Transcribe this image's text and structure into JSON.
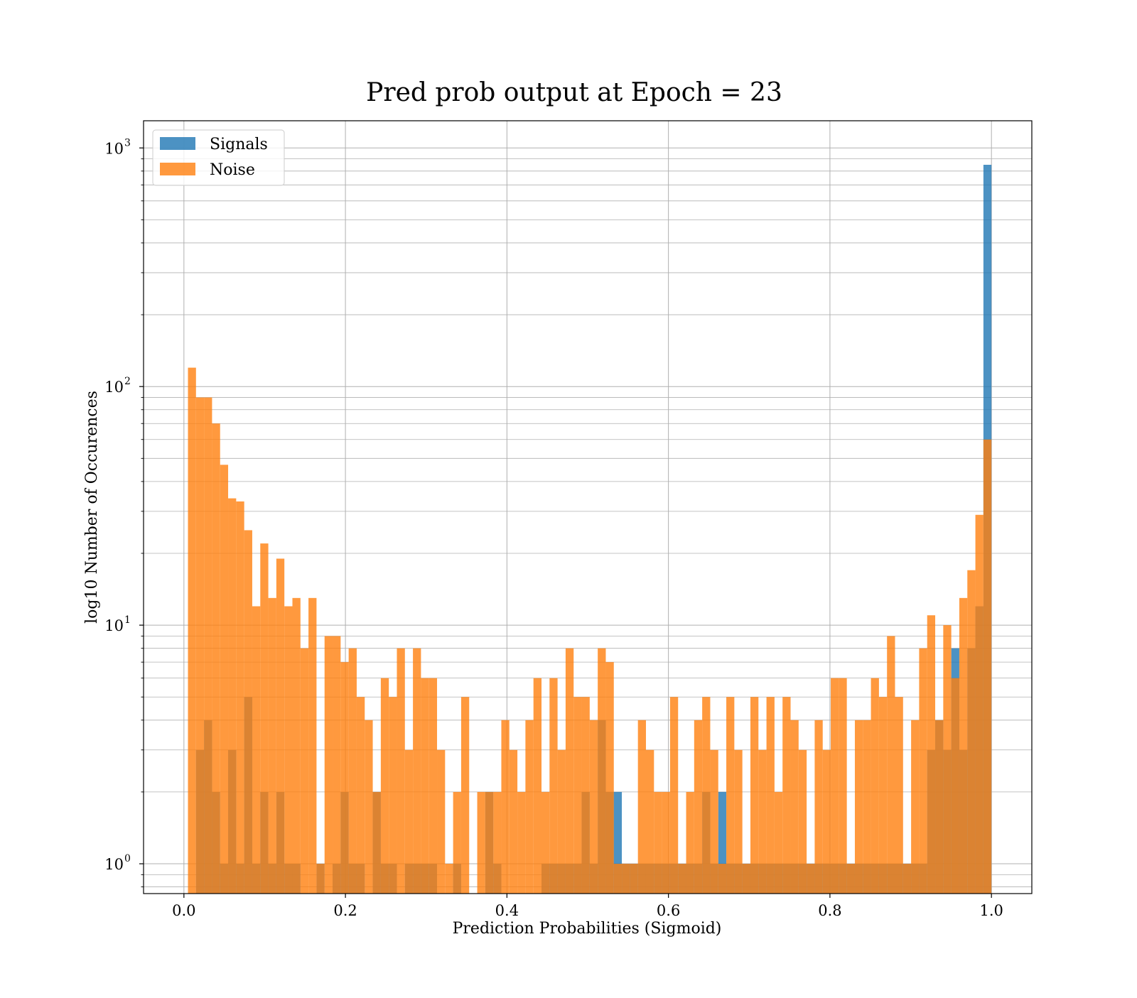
{
  "chart_data": {
    "type": "bar",
    "title": "Pred prob output at Epoch = 23",
    "xlabel": "Prediction Probabilities (Sigmoid)",
    "ylabel": "log10 Number of Occurences",
    "x_ticks": [
      "0.0",
      "0.2",
      "0.4",
      "0.6",
      "0.8",
      "1.0"
    ],
    "y_ticks": [
      {
        "base": "10",
        "exp": "0"
      },
      {
        "base": "10",
        "exp": "1"
      },
      {
        "base": "10",
        "exp": "2"
      },
      {
        "base": "10",
        "exp": "3"
      }
    ],
    "xlim": [
      -0.05,
      1.05
    ],
    "ylim": [
      0.75,
      1300
    ],
    "y_scale": "log",
    "grid": true,
    "legend_position": "top-left",
    "bin_range": [
      0.005,
      1.0
    ],
    "bin_count": 100,
    "series": [
      {
        "name": "Signals",
        "color": "#1f77b4",
        "values": [
          0,
          3,
          4,
          2,
          1,
          3,
          1,
          5,
          1,
          2,
          1,
          2,
          1,
          1,
          0,
          0,
          1,
          0,
          1,
          2,
          1,
          1,
          0,
          2,
          1,
          1,
          0,
          1,
          1,
          1,
          1,
          0,
          0,
          1,
          0,
          0,
          0,
          2,
          1,
          0,
          0,
          0,
          0,
          0,
          1,
          1,
          1,
          1,
          1,
          2,
          1,
          4,
          2,
          2,
          1,
          1,
          1,
          1,
          1,
          1,
          1,
          1,
          1,
          1,
          2,
          1,
          2,
          1,
          1,
          1,
          1,
          1,
          1,
          1,
          1,
          1,
          1,
          1,
          1,
          1,
          1,
          1,
          1,
          1,
          1,
          1,
          1,
          1,
          1,
          1,
          1,
          1,
          3,
          4,
          3,
          8,
          3,
          8,
          12,
          850
        ]
      },
      {
        "name": "Noise",
        "color": "#ff7f0e",
        "values": [
          120,
          90,
          90,
          70,
          47,
          34,
          33,
          25,
          12,
          22,
          13,
          19,
          12,
          13,
          8,
          13,
          1,
          9,
          9,
          7,
          8,
          5,
          4,
          2,
          6,
          5,
          8,
          3,
          8,
          6,
          6,
          3,
          1,
          2,
          5,
          0,
          2,
          2,
          2,
          4,
          3,
          2,
          4,
          6,
          2,
          6,
          3,
          8,
          5,
          5,
          4,
          8,
          7,
          1,
          1,
          1,
          4,
          3,
          2,
          2,
          5,
          1,
          2,
          4,
          5,
          3,
          1,
          5,
          3,
          1,
          5,
          3,
          5,
          2,
          5,
          4,
          3,
          1,
          4,
          3,
          6,
          6,
          1,
          4,
          4,
          6,
          5,
          9,
          5,
          1,
          4,
          8,
          11,
          4,
          10,
          6,
          13,
          17,
          29,
          60
        ]
      }
    ]
  }
}
